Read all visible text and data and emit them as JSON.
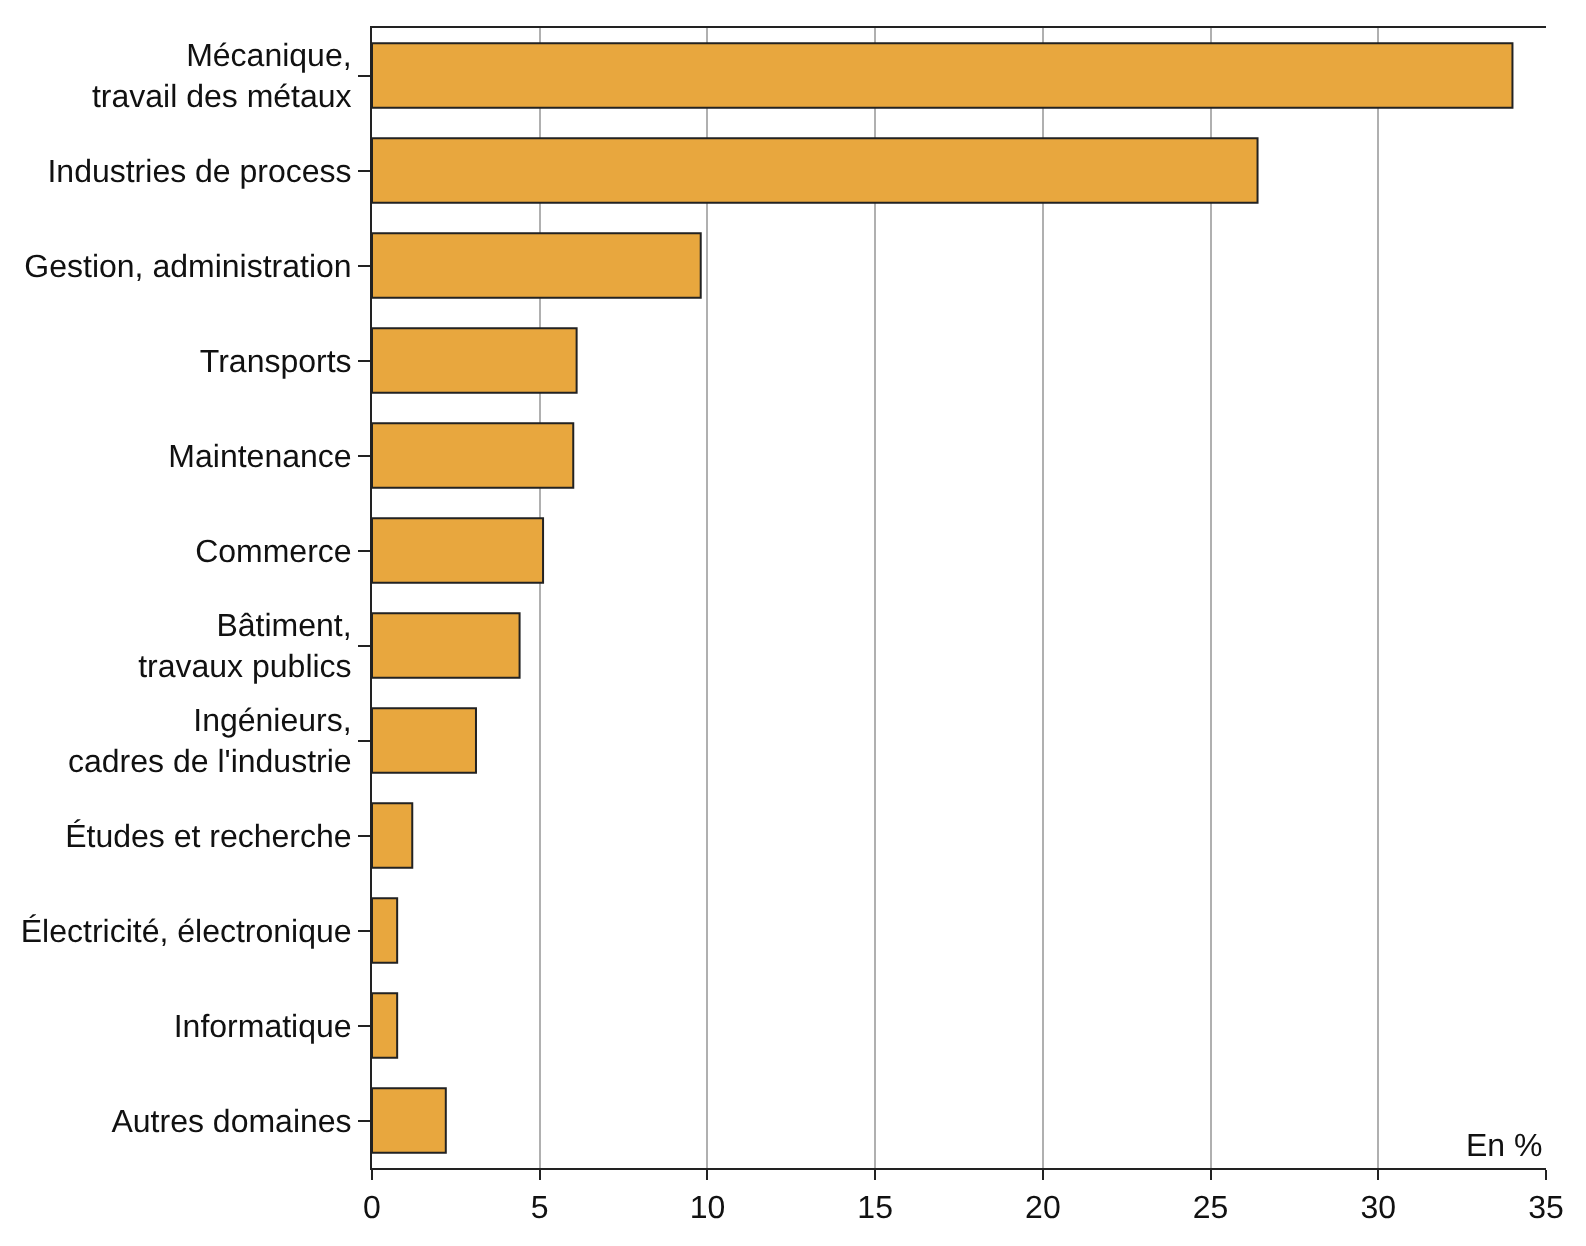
{
  "chart_data": {
    "type": "bar",
    "orientation": "horizontal",
    "categories": [
      "Mécanique,\ntravail des métaux",
      "Industries de process",
      "Gestion, administration",
      "Transports",
      "Maintenance",
      "Commerce",
      "Bâtiment,\ntravaux publics",
      "Ingénieurs,\ncadres de l'industrie",
      "Études et recherche",
      "Électricité, électronique",
      "Informatique",
      "Autres domaines"
    ],
    "values": [
      34.0,
      26.4,
      9.8,
      6.1,
      6.0,
      5.1,
      4.4,
      3.1,
      1.2,
      0.75,
      0.75,
      2.2
    ],
    "color": "#e8a73e",
    "xlim": [
      0,
      35
    ],
    "xticks": [
      0,
      5,
      10,
      15,
      20,
      25,
      30,
      35
    ],
    "grid": "x",
    "annotations": [
      "En %"
    ]
  }
}
